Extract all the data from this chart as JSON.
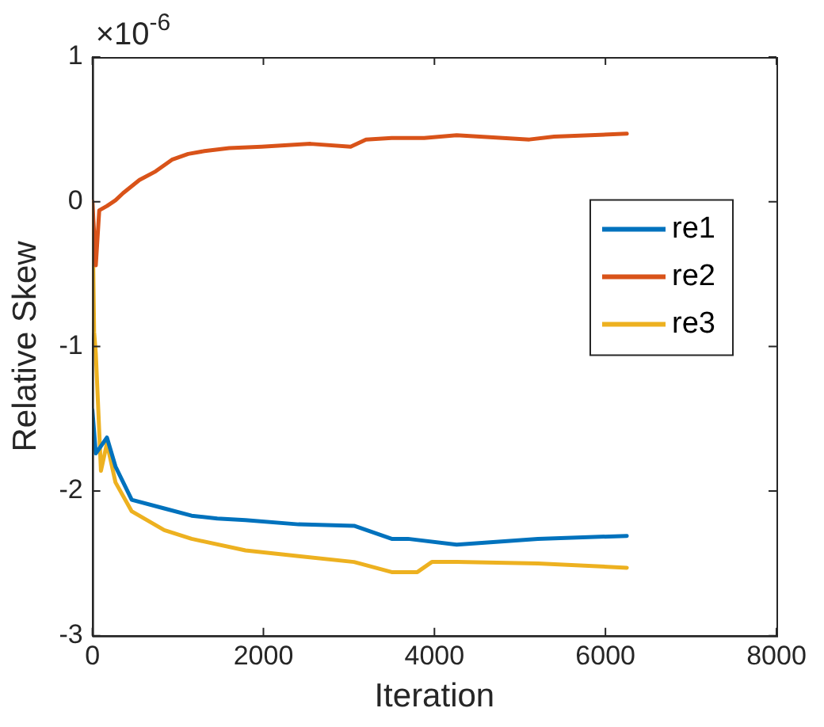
{
  "chart_data": {
    "type": "line",
    "xlabel": "Iteration",
    "ylabel": "Relative Skew",
    "annotations": [
      "×10$^{-6}$"
    ],
    "xlim": [
      0,
      8000
    ],
    "xticks": [
      0,
      2000,
      4000,
      6000,
      8000
    ],
    "ylim": [
      -3,
      1
    ],
    "yticks": [
      -3,
      -2,
      -1,
      0,
      1
    ],
    "grid": false,
    "legend": "right",
    "marker": "none",
    "line_style": "solid",
    "series": [
      {
        "name": "re1",
        "color": "#0072bd",
        "x": [
          0,
          40,
          170,
          270,
          460,
          840,
          1160,
          1460,
          1790,
          2410,
          3060,
          3500,
          3690,
          4260,
          5210,
          6250
        ],
        "values": [
          -1.44,
          -1.74,
          -1.63,
          -1.83,
          -2.06,
          -2.12,
          -2.17,
          -2.19,
          -2.2,
          -2.23,
          -2.24,
          -2.33,
          -2.33,
          -2.37,
          -2.33,
          -2.31
        ]
      },
      {
        "name": "re2",
        "color": "#d95319",
        "x": [
          0,
          40,
          80,
          170,
          270,
          360,
          550,
          740,
          930,
          1120,
          1310,
          1600,
          1980,
          2550,
          3020,
          3200,
          3500,
          3880,
          4260,
          5110,
          5400,
          6250
        ],
        "values": [
          0,
          -0.44,
          -0.06,
          -0.03,
          0.01,
          0.06,
          0.15,
          0.21,
          0.29,
          0.33,
          0.35,
          0.37,
          0.38,
          0.4,
          0.38,
          0.43,
          0.44,
          0.44,
          0.46,
          0.43,
          0.45,
          0.47
        ]
      },
      {
        "name": "re3",
        "color": "#edb120",
        "x": [
          0,
          20,
          40,
          100,
          170,
          270,
          460,
          840,
          1160,
          1790,
          2410,
          3060,
          3500,
          3800,
          3970,
          4260,
          5210,
          6250
        ],
        "values": [
          0,
          -0.9,
          -1.05,
          -1.86,
          -1.67,
          -1.94,
          -2.14,
          -2.27,
          -2.33,
          -2.41,
          -2.45,
          -2.49,
          -2.56,
          -2.56,
          -2.49,
          -2.49,
          -2.5,
          -2.53
        ]
      }
    ]
  }
}
